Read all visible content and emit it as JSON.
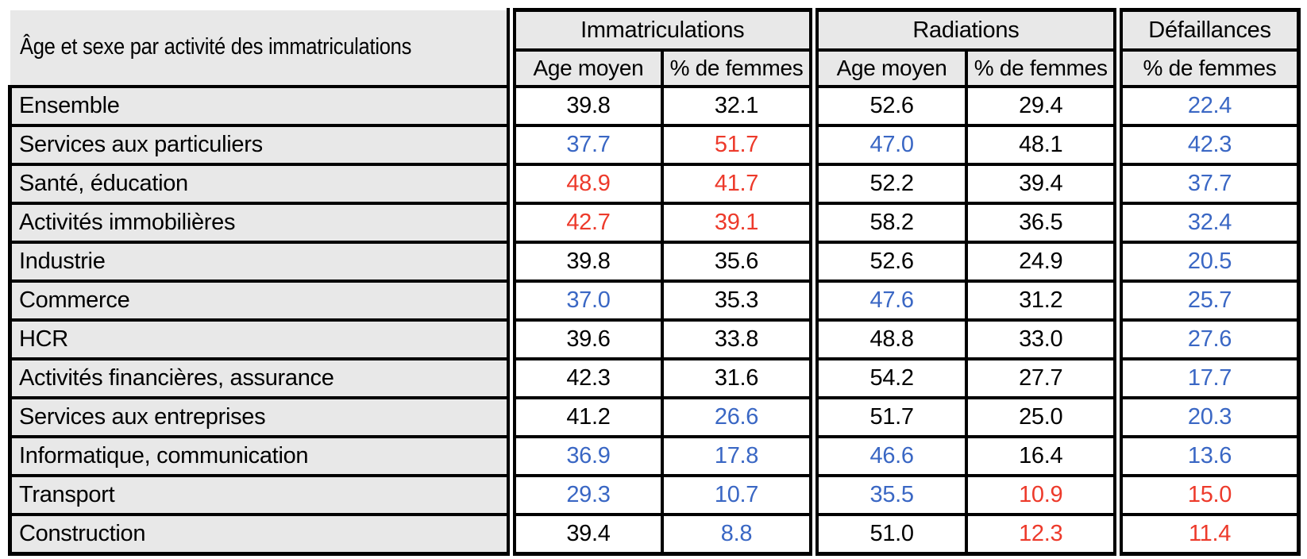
{
  "colors": {
    "value_blue": "#3a67c4",
    "value_red": "#ed3a2b",
    "value_black": "#000000",
    "header_bg": "#e8e8e8",
    "border": "#000000"
  },
  "table": {
    "corner_title": "Âge et sexe par activité des immatriculations",
    "groups": [
      {
        "label": "Immatriculations",
        "subcolumns": [
          "Age moyen",
          "% de femmes"
        ]
      },
      {
        "label": "Radiations",
        "subcolumns": [
          "Age moyen",
          "% de femmes"
        ]
      },
      {
        "label": "Défaillances",
        "subcolumns": [
          "% de femmes"
        ]
      }
    ],
    "rows": [
      {
        "label": "Ensemble",
        "values": [
          {
            "v": "39.8",
            "c": "black"
          },
          {
            "v": "32.1",
            "c": "black"
          },
          {
            "v": "52.6",
            "c": "black"
          },
          {
            "v": "29.4",
            "c": "black"
          },
          {
            "v": "22.4",
            "c": "blue"
          }
        ]
      },
      {
        "label": "Services aux particuliers",
        "values": [
          {
            "v": "37.7",
            "c": "blue"
          },
          {
            "v": "51.7",
            "c": "red"
          },
          {
            "v": "47.0",
            "c": "blue"
          },
          {
            "v": "48.1",
            "c": "black"
          },
          {
            "v": "42.3",
            "c": "blue"
          }
        ]
      },
      {
        "label": "Santé, éducation",
        "values": [
          {
            "v": "48.9",
            "c": "red"
          },
          {
            "v": "41.7",
            "c": "red"
          },
          {
            "v": "52.2",
            "c": "black"
          },
          {
            "v": "39.4",
            "c": "black"
          },
          {
            "v": "37.7",
            "c": "blue"
          }
        ]
      },
      {
        "label": "Activités immobilières",
        "values": [
          {
            "v": "42.7",
            "c": "red"
          },
          {
            "v": "39.1",
            "c": "red"
          },
          {
            "v": "58.2",
            "c": "black"
          },
          {
            "v": "36.5",
            "c": "black"
          },
          {
            "v": "32.4",
            "c": "blue"
          }
        ]
      },
      {
        "label": "Industrie",
        "values": [
          {
            "v": "39.8",
            "c": "black"
          },
          {
            "v": "35.6",
            "c": "black"
          },
          {
            "v": "52.6",
            "c": "black"
          },
          {
            "v": "24.9",
            "c": "black"
          },
          {
            "v": "20.5",
            "c": "blue"
          }
        ]
      },
      {
        "label": "Commerce",
        "values": [
          {
            "v": "37.0",
            "c": "blue"
          },
          {
            "v": "35.3",
            "c": "black"
          },
          {
            "v": "47.6",
            "c": "blue"
          },
          {
            "v": "31.2",
            "c": "black"
          },
          {
            "v": "25.7",
            "c": "blue"
          }
        ]
      },
      {
        "label": "HCR",
        "values": [
          {
            "v": "39.6",
            "c": "black"
          },
          {
            "v": "33.8",
            "c": "black"
          },
          {
            "v": "48.8",
            "c": "black"
          },
          {
            "v": "33.0",
            "c": "black"
          },
          {
            "v": "27.6",
            "c": "blue"
          }
        ]
      },
      {
        "label": "Activités financières, assurance",
        "values": [
          {
            "v": "42.3",
            "c": "black"
          },
          {
            "v": "31.6",
            "c": "black"
          },
          {
            "v": "54.2",
            "c": "black"
          },
          {
            "v": "27.7",
            "c": "black"
          },
          {
            "v": "17.7",
            "c": "blue"
          }
        ]
      },
      {
        "label": "Services aux entreprises",
        "values": [
          {
            "v": "41.2",
            "c": "black"
          },
          {
            "v": "26.6",
            "c": "blue"
          },
          {
            "v": "51.7",
            "c": "black"
          },
          {
            "v": "25.0",
            "c": "black"
          },
          {
            "v": "20.3",
            "c": "blue"
          }
        ]
      },
      {
        "label": "Informatique, communication",
        "values": [
          {
            "v": "36.9",
            "c": "blue"
          },
          {
            "v": "17.8",
            "c": "blue"
          },
          {
            "v": "46.6",
            "c": "blue"
          },
          {
            "v": "16.4",
            "c": "black"
          },
          {
            "v": "13.6",
            "c": "blue"
          }
        ]
      },
      {
        "label": "Transport",
        "values": [
          {
            "v": "29.3",
            "c": "blue"
          },
          {
            "v": "10.7",
            "c": "blue"
          },
          {
            "v": "35.5",
            "c": "blue"
          },
          {
            "v": "10.9",
            "c": "red"
          },
          {
            "v": "15.0",
            "c": "red"
          }
        ]
      },
      {
        "label": "Construction",
        "values": [
          {
            "v": "39.4",
            "c": "black"
          },
          {
            "v": "8.8",
            "c": "blue"
          },
          {
            "v": "51.0",
            "c": "black"
          },
          {
            "v": "12.3",
            "c": "red"
          },
          {
            "v": "11.4",
            "c": "red"
          }
        ]
      }
    ]
  },
  "chart_data": {
    "type": "table",
    "title": "Âge et sexe par activité des immatriculations",
    "columns": [
      "Activité",
      "Immatriculations – Age moyen",
      "Immatriculations – % de femmes",
      "Radiations – Age moyen",
      "Radiations – % de femmes",
      "Défaillances – % de femmes"
    ],
    "rows": [
      [
        "Ensemble",
        39.8,
        32.1,
        52.6,
        29.4,
        22.4
      ],
      [
        "Services aux particuliers",
        37.7,
        51.7,
        47.0,
        48.1,
        42.3
      ],
      [
        "Santé, éducation",
        48.9,
        41.7,
        52.2,
        39.4,
        37.7
      ],
      [
        "Activités immobilières",
        42.7,
        39.1,
        58.2,
        36.5,
        32.4
      ],
      [
        "Industrie",
        39.8,
        35.6,
        52.6,
        24.9,
        20.5
      ],
      [
        "Commerce",
        37.0,
        35.3,
        47.6,
        31.2,
        25.7
      ],
      [
        "HCR",
        39.6,
        33.8,
        48.8,
        33.0,
        27.6
      ],
      [
        "Activités financières, assurance",
        42.3,
        31.6,
        54.2,
        27.7,
        17.7
      ],
      [
        "Services aux entreprises",
        41.2,
        26.6,
        51.7,
        25.0,
        20.3
      ],
      [
        "Informatique, communication",
        36.9,
        17.8,
        46.6,
        16.4,
        13.6
      ],
      [
        "Transport",
        29.3,
        10.7,
        35.5,
        10.9,
        15.0
      ],
      [
        "Construction",
        39.4,
        8.8,
        51.0,
        12.3,
        11.4
      ]
    ]
  }
}
